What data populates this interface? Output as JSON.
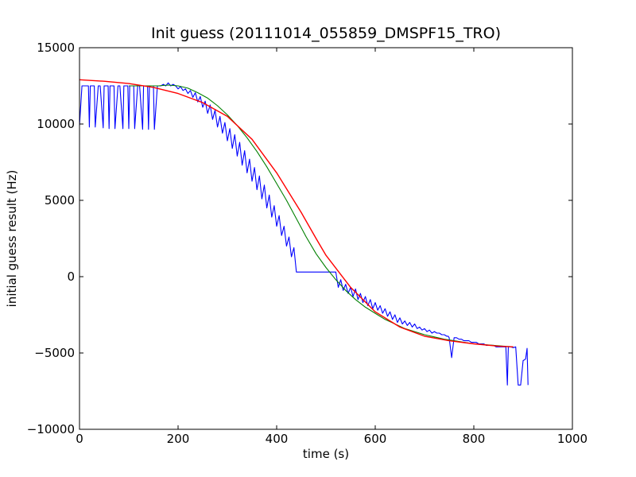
{
  "chart_data": {
    "type": "line",
    "title": "Init guess (20111014_055859_DMSPF15_TRO)",
    "xlabel": "time (s)",
    "ylabel": "initial guess result (Hz)",
    "xlim": [
      0,
      1000
    ],
    "ylim": [
      -10000,
      15000
    ],
    "xticks": [
      "0",
      "200",
      "400",
      "600",
      "800",
      "1000"
    ],
    "yticks": [
      "−10000",
      "−5000",
      "0",
      "5000",
      "10000",
      "15000"
    ],
    "grid": false,
    "legend": "none",
    "series": [
      {
        "color": "#0000ff",
        "x": [
          0,
          5,
          8,
          18,
          20,
          22,
          28,
          30,
          32,
          38,
          40,
          42,
          48,
          50,
          52,
          58,
          60,
          62,
          68,
          70,
          72,
          78,
          80,
          82,
          88,
          90,
          92,
          98,
          100,
          102,
          108,
          110,
          112,
          118,
          120,
          122,
          128,
          130,
          132,
          138,
          140,
          142,
          148,
          150,
          152,
          158,
          160,
          165,
          170,
          175,
          180,
          185,
          190,
          195,
          200,
          205,
          210,
          215,
          220,
          225,
          230,
          235,
          240,
          245,
          250,
          255,
          260,
          265,
          270,
          275,
          280,
          285,
          290,
          295,
          300,
          305,
          310,
          315,
          320,
          325,
          330,
          335,
          340,
          345,
          350,
          355,
          360,
          365,
          370,
          375,
          380,
          385,
          390,
          395,
          400,
          405,
          410,
          415,
          420,
          425,
          430,
          435,
          440,
          445,
          450,
          455,
          460,
          465,
          470,
          475,
          480,
          485,
          490,
          492,
          495,
          500,
          502,
          505,
          510,
          515,
          520,
          525,
          530,
          535,
          540,
          545,
          550,
          555,
          560,
          565,
          570,
          575,
          580,
          585,
          590,
          595,
          600,
          605,
          610,
          615,
          620,
          625,
          630,
          635,
          640,
          645,
          650,
          655,
          660,
          665,
          670,
          675,
          680,
          685,
          690,
          695,
          700,
          705,
          710,
          715,
          720,
          725,
          730,
          735,
          740,
          745,
          748,
          750,
          755,
          760,
          765,
          770,
          775,
          780,
          785,
          790,
          795,
          800,
          805,
          810,
          815,
          820,
          825,
          830,
          835,
          840,
          845,
          850,
          855,
          860,
          865,
          868,
          870,
          872,
          875,
          880,
          885,
          890,
          895,
          900,
          905,
          908,
          910
        ],
        "y": [
          9900,
          12500,
          12500,
          12500,
          9800,
          12500,
          12500,
          12500,
          9800,
          12500,
          12500,
          12500,
          9750,
          12500,
          12500,
          12500,
          9700,
          12500,
          12500,
          12500,
          9700,
          12500,
          12500,
          12500,
          9700,
          12500,
          12500,
          12500,
          9700,
          12500,
          12500,
          12500,
          9700,
          12500,
          12500,
          12500,
          9650,
          12500,
          12500,
          12500,
          9650,
          12500,
          12500,
          12500,
          9650,
          12500,
          12500,
          12500,
          12600,
          12500,
          12700,
          12500,
          12600,
          12500,
          12300,
          12450,
          12200,
          12300,
          12000,
          12200,
          11750,
          12050,
          11450,
          11800,
          11100,
          11500,
          10700,
          11250,
          10300,
          10900,
          9800,
          10500,
          9400,
          10100,
          8900,
          9700,
          8400,
          9300,
          7900,
          8800,
          7300,
          8250,
          6800,
          7700,
          6250,
          7150,
          5700,
          6600,
          5100,
          6000,
          4500,
          5350,
          3900,
          4650,
          3300,
          4000,
          2700,
          3300,
          2000,
          2600,
          1300,
          1900,
          300,
          300,
          300,
          300,
          300,
          300,
          300,
          300,
          300,
          300,
          300,
          300,
          300,
          300,
          300,
          300,
          300,
          300,
          300,
          -700,
          -200,
          -900,
          -500,
          -1100,
          -700,
          -1300,
          -800,
          -1500,
          -1100,
          -1700,
          -1300,
          -1900,
          -1500,
          -2100,
          -1700,
          -2200,
          -1900,
          -2400,
          -2100,
          -2600,
          -2300,
          -2800,
          -2500,
          -3000,
          -2700,
          -3100,
          -2900,
          -3200,
          -3000,
          -3300,
          -3100,
          -3400,
          -3300,
          -3500,
          -3400,
          -3600,
          -3500,
          -3700,
          -3600,
          -3700,
          -3700,
          -3800,
          -3800,
          -3900,
          -3900,
          -4000,
          -5300,
          -4000,
          -4000,
          -4100,
          -4100,
          -4200,
          -4200,
          -4200,
          -4300,
          -4300,
          -4300,
          -4400,
          -4400,
          -4400,
          -4500,
          -4500,
          -4500,
          -4500,
          -4600,
          -4600,
          -4600,
          -4600,
          -4600,
          -7100,
          -4600,
          -4600,
          -4600,
          -4650,
          -4600,
          -7100,
          -7100,
          -5500,
          -5400,
          -4700,
          -7100
        ]
      },
      {
        "color": "#008000",
        "x": [
          100,
          130,
          160,
          180,
          200,
          220,
          240,
          260,
          280,
          300,
          320,
          340,
          360,
          380,
          400,
          420,
          440,
          460,
          480,
          500,
          520,
          540,
          560,
          580,
          600,
          620,
          640,
          660,
          680,
          700,
          720,
          740,
          760,
          780,
          800,
          820,
          840,
          860,
          880
        ],
        "y": [
          12500,
          12500,
          12500,
          12550,
          12500,
          12350,
          12050,
          11700,
          11200,
          10600,
          9900,
          9100,
          8200,
          7200,
          6100,
          5000,
          3800,
          2600,
          1500,
          600,
          -200,
          -900,
          -1500,
          -2000,
          -2400,
          -2800,
          -3100,
          -3400,
          -3600,
          -3800,
          -3950,
          -4100,
          -4200,
          -4300,
          -4400,
          -4450,
          -4500,
          -4550,
          -4600
        ]
      },
      {
        "color": "#ff0000",
        "x": [
          0,
          50,
          100,
          150,
          200,
          250,
          300,
          350,
          400,
          450,
          480,
          500,
          550,
          600,
          650,
          700,
          750,
          800,
          850,
          880
        ],
        "y": [
          12900,
          12800,
          12650,
          12400,
          12000,
          11400,
          10500,
          9000,
          6800,
          4200,
          2500,
          1400,
          -700,
          -2300,
          -3300,
          -3900,
          -4200,
          -4400,
          -4550,
          -4600
        ]
      }
    ]
  }
}
